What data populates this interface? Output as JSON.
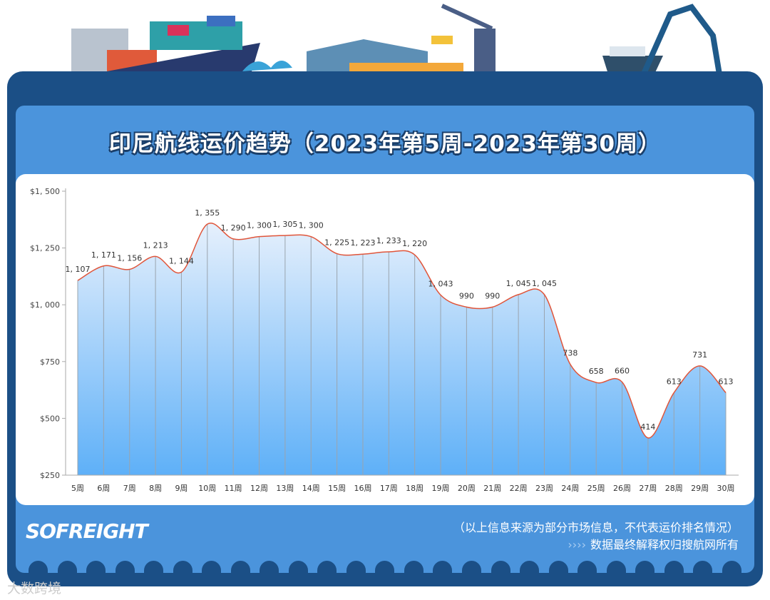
{
  "title": "印尼航线运价趋势（2023年第5周-2023年第30周）",
  "footer": {
    "logo": "SOFREIGHT",
    "note": "（以上信息来源为部分市场信息，不代表运价排名情况）",
    "arrows": "››››",
    "rights": "数据最终解释权归搜航网所有",
    "watermark": "大数跨境"
  },
  "colors": {
    "frame": "#1b4f86",
    "panel": "#4b94dc",
    "line": "#e0553a",
    "area_top": "#e6f0fc",
    "area_bottom": "#5eb0f8"
  },
  "chart_data": {
    "type": "area",
    "categories": [
      "5周",
      "6周",
      "7周",
      "8周",
      "9周",
      "10周",
      "11周",
      "12周",
      "13周",
      "14周",
      "15周",
      "16周",
      "17周",
      "18周",
      "19周",
      "20周",
      "21周",
      "22周",
      "23周",
      "24周",
      "25周",
      "26周",
      "27周",
      "28周",
      "29周",
      "30周"
    ],
    "values": [
      1107,
      1171,
      1156,
      1213,
      1144,
      1355,
      1290,
      1300,
      1305,
      1300,
      1225,
      1223,
      1233,
      1220,
      1043,
      990,
      990,
      1045,
      1045,
      738,
      658,
      660,
      414,
      613,
      731,
      613
    ],
    "data_labels": [
      "1, 107",
      "1, 171",
      "1, 156",
      "1, 213",
      "1, 144",
      "1, 355",
      "1, 290",
      "1, 300",
      "1, 305",
      "1, 300",
      "1, 225",
      "1, 223",
      "1, 233",
      "1, 220",
      "1, 043",
      "990",
      "990",
      "1, 045",
      "1, 045",
      "738",
      "658",
      "660",
      "414",
      "613",
      "731",
      "613"
    ],
    "yticks": [
      250,
      500,
      750,
      1000,
      1250,
      1500
    ],
    "ytick_labels": [
      "$250",
      "$500",
      "$750",
      "$1, 000",
      "$1, 250",
      "$1, 500"
    ],
    "ylim": [
      250,
      1500
    ],
    "smooth": true,
    "grid": false
  }
}
